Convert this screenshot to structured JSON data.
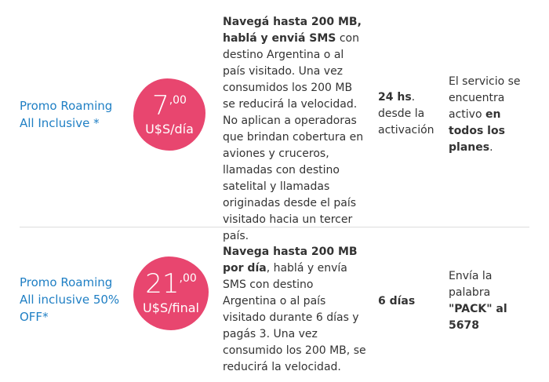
{
  "plans": [
    {
      "name_line1": "Promo Roaming",
      "name_line2": "All Inclusive *",
      "price_int": "7",
      "price_dec": ",00",
      "price_unit": "U$S/día",
      "desc_bold": "Navegá hasta 200 MB, hablá y enviá SMS",
      "desc_rest": " con destino Argentina o al país visitado. Una vez consumidos los 200 MB se reducirá la velocidad. No aplican a operadoras que brindan cobertura en aviones y cruceros, llamadas con destino satelital y llamadas originadas desde el país visitado hacia un tercer país.",
      "term_bold": "24 hs",
      "term_rest": ". desde la activación",
      "info_plain": "El servicio se encuentra activo ",
      "info_bold": "en todos los planes",
      "info_end": ".",
      "color": "#e8466f"
    },
    {
      "name_line1": "Promo Roaming",
      "name_line2": "All inclusive 50% OFF*",
      "price_int": "21",
      "price_dec": ",00",
      "price_unit": "U$S/final",
      "desc_bold": "Navega hasta 200 MB por día",
      "desc_rest": ", hablá y envía SMS con destino Argentina o al país visitado durante 6 días y pagás 3. Una vez consumido los 200 MB, se reducirá la velocidad.",
      "term_bold": "6 días",
      "info_plain": "Envía la palabra ",
      "info_bold": "\"PACK\" al 5678",
      "color": "#e8466f"
    }
  ],
  "colors": {
    "accent": "#e8466f",
    "link": "#1f7fc4",
    "divider": "#dddddd"
  }
}
